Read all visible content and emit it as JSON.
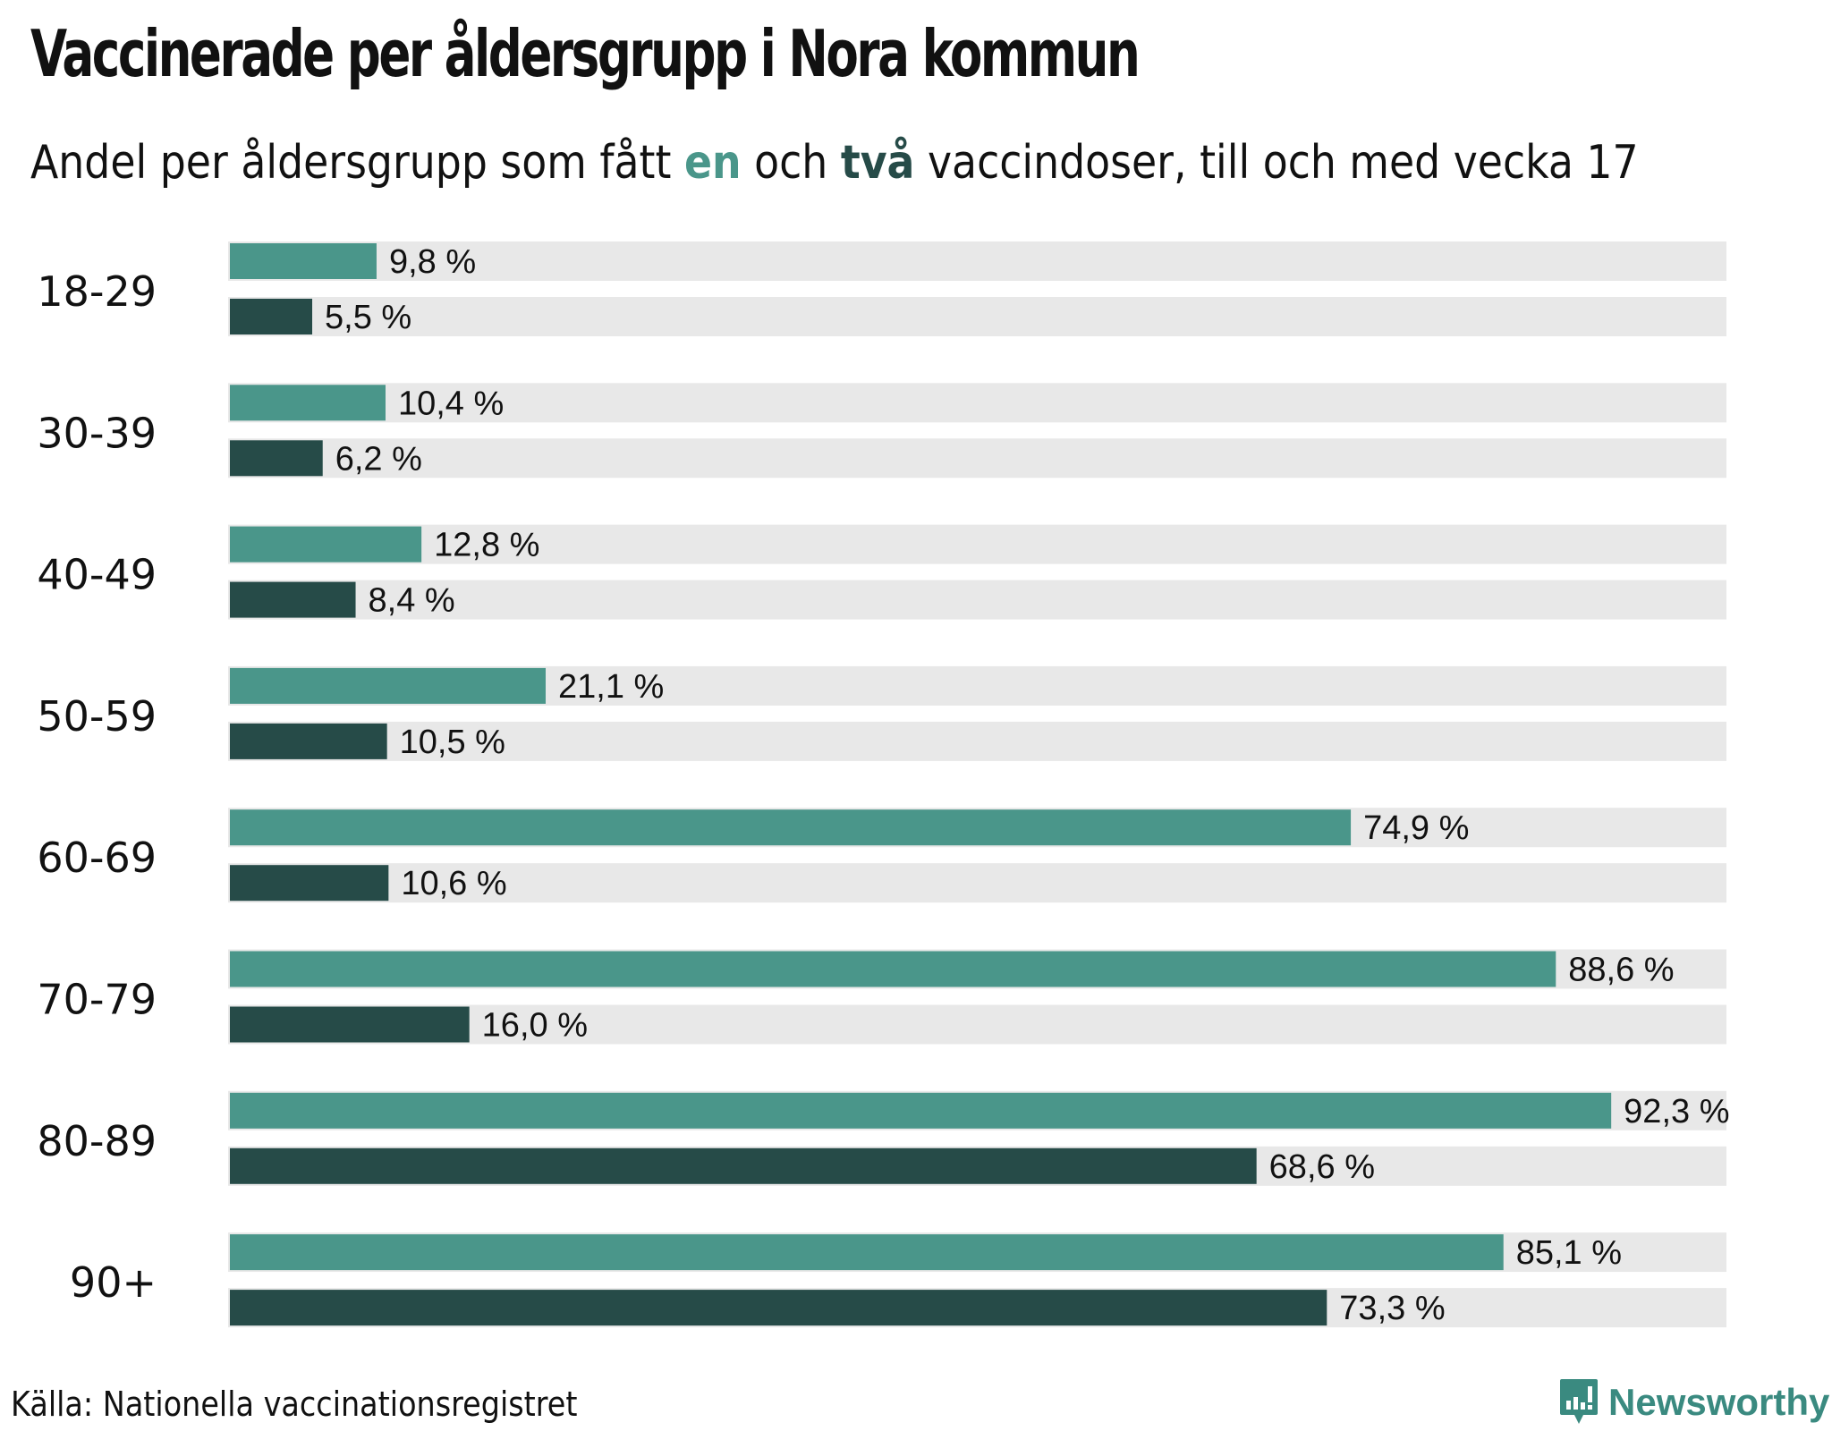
{
  "title": "Vaccinerade per åldersgrupp i Nora kommun",
  "subtitle": {
    "part1": "Andel per åldersgrupp som fått ",
    "highlight_one": "en",
    "part2": " och ",
    "highlight_two": "två",
    "part3": " vaccindoser, till och med vecka 17"
  },
  "source": "Källa: Nationella vaccinationsregistret",
  "logo": {
    "text": "Newsworthy",
    "icon": "newsworthy-chart-bubble-icon"
  },
  "colors": {
    "one_dose": "#4a968a",
    "two_doses": "#264b48",
    "track": "#e8e8e8",
    "brand": "#3a8a80"
  },
  "chart_data": {
    "type": "bar",
    "orientation": "horizontal",
    "title": "Vaccinerade per åldersgrupp i Nora kommun",
    "subtitle": "Andel per åldersgrupp som fått en och två vaccindoser, till och med vecka 17",
    "xlabel": "",
    "ylabel": "",
    "xlim": [
      0,
      100
    ],
    "unit": "%",
    "grid": false,
    "legend": "inline-in-subtitle",
    "categories": [
      "18-29",
      "30-39",
      "40-49",
      "50-59",
      "60-69",
      "70-79",
      "80-89",
      "90+"
    ],
    "series": [
      {
        "name": "en dos",
        "color": "#4a968a",
        "values": [
          9.8,
          10.4,
          12.8,
          21.1,
          74.9,
          88.6,
          92.3,
          85.1
        ],
        "labels": [
          "9,8 %",
          "10,4 %",
          "12,8 %",
          "21,1 %",
          "74,9 %",
          "88,6 %",
          "92,3 %",
          "85,1 %"
        ]
      },
      {
        "name": "två doser",
        "color": "#264b48",
        "values": [
          5.5,
          6.2,
          8.4,
          10.5,
          10.6,
          16.0,
          68.6,
          73.3
        ],
        "labels": [
          "5,5 %",
          "6,2 %",
          "8,4 %",
          "10,5 %",
          "10,6 %",
          "16,0 %",
          "68,6 %",
          "73,3 %"
        ]
      }
    ]
  }
}
